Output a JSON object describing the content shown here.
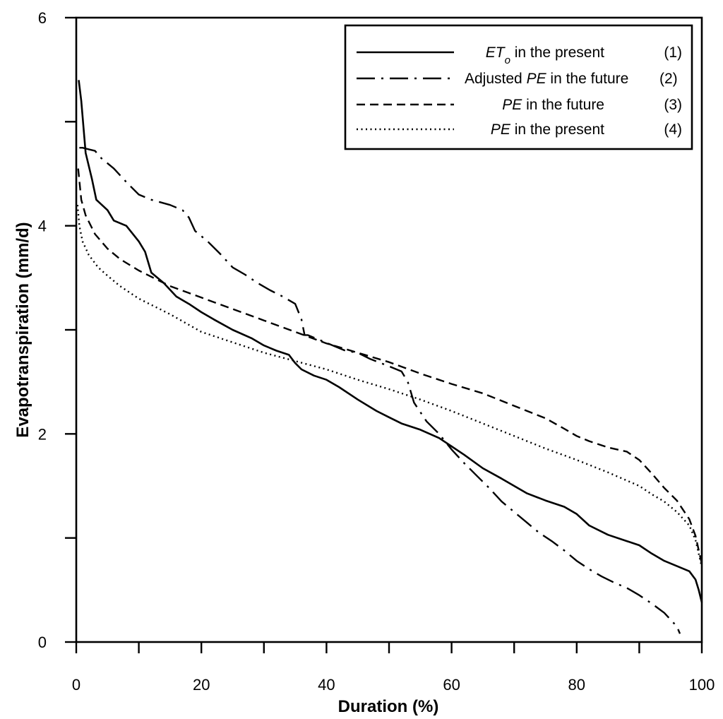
{
  "chart_data": {
    "type": "line",
    "title": "",
    "xlabel": "Duration (%)",
    "ylabel": "Evapotranspiration (mm/d)",
    "xlim": [
      0,
      100
    ],
    "ylim": [
      0,
      6
    ],
    "x_major_ticks": [
      0,
      20,
      40,
      60,
      80,
      100
    ],
    "x_minor_ticks": [
      10,
      30,
      50,
      70,
      90
    ],
    "y_major_ticks": [
      0,
      2,
      4,
      6
    ],
    "y_minor_ticks": [
      1,
      3,
      5
    ],
    "x_tick_labels": [
      "0",
      "20",
      "40",
      "60",
      "80",
      "100"
    ],
    "y_tick_labels": [
      "0",
      "2",
      "4",
      "6"
    ],
    "grid": false,
    "legend_position": "top-right",
    "series": [
      {
        "name": "ETo in the present",
        "legend_parts": [
          {
            "text": "ET",
            "italic": true
          },
          {
            "text": "o",
            "italic": true,
            "sub": true
          },
          {
            "text": " in the present",
            "italic": false
          }
        ],
        "number": "(1)",
        "style": "solid",
        "x": [
          0.4,
          0.8,
          1.5,
          2.5,
          3.2,
          5,
          6,
          8,
          10,
          11,
          12,
          14,
          16,
          18,
          20,
          22,
          25,
          28,
          30,
          32,
          34,
          35,
          36,
          38,
          40,
          42,
          45,
          48,
          50,
          52,
          55,
          58,
          60,
          62,
          65,
          68,
          70,
          72,
          75,
          78,
          80,
          82,
          85,
          88,
          90,
          92,
          94,
          96,
          98,
          99,
          99.5,
          100
        ],
        "y": [
          5.4,
          5.2,
          4.7,
          4.45,
          4.25,
          4.15,
          4.05,
          4.0,
          3.85,
          3.75,
          3.55,
          3.45,
          3.32,
          3.25,
          3.17,
          3.1,
          3.0,
          2.92,
          2.85,
          2.8,
          2.76,
          2.68,
          2.62,
          2.56,
          2.52,
          2.45,
          2.33,
          2.22,
          2.16,
          2.1,
          2.04,
          1.96,
          1.88,
          1.8,
          1.67,
          1.57,
          1.5,
          1.43,
          1.36,
          1.3,
          1.23,
          1.12,
          1.03,
          0.97,
          0.93,
          0.85,
          0.78,
          0.73,
          0.68,
          0.6,
          0.5,
          0.38
        ]
      },
      {
        "name": "Adjusted PE in the future",
        "legend_parts": [
          {
            "text": "Adjusted ",
            "italic": false
          },
          {
            "text": "PE",
            "italic": true
          },
          {
            "text": " in the future",
            "italic": false
          }
        ],
        "number": "(2)",
        "style": "dashdot",
        "x": [
          0.5,
          1,
          3,
          4,
          6,
          8,
          10,
          12,
          15,
          17,
          18,
          19,
          21,
          23,
          25,
          27,
          29,
          31,
          33,
          35,
          36,
          36.5,
          37,
          39,
          41,
          43,
          45,
          47,
          50,
          52,
          53,
          54,
          56,
          58,
          60,
          62,
          64,
          66,
          68,
          70,
          72,
          74,
          76,
          78,
          80,
          82,
          84,
          86,
          88,
          90,
          92,
          94,
          96,
          96.5
        ],
        "y": [
          4.75,
          4.75,
          4.72,
          4.65,
          4.55,
          4.42,
          4.3,
          4.25,
          4.2,
          4.15,
          4.08,
          3.95,
          3.85,
          3.73,
          3.6,
          3.53,
          3.45,
          3.38,
          3.32,
          3.25,
          3.1,
          2.95,
          2.95,
          2.9,
          2.85,
          2.8,
          2.78,
          2.72,
          2.65,
          2.6,
          2.5,
          2.3,
          2.12,
          2.0,
          1.85,
          1.72,
          1.6,
          1.48,
          1.35,
          1.25,
          1.15,
          1.05,
          0.97,
          0.88,
          0.78,
          0.7,
          0.63,
          0.57,
          0.52,
          0.45,
          0.37,
          0.28,
          0.15,
          0.08
        ]
      },
      {
        "name": "PE in the future",
        "legend_parts": [
          {
            "text": "PE",
            "italic": true
          },
          {
            "text": " in the future",
            "italic": false
          }
        ],
        "number": "(3)",
        "style": "dashed",
        "x": [
          0.3,
          0.8,
          1.5,
          3,
          5,
          7,
          10,
          15,
          20,
          25,
          30,
          35,
          40,
          45,
          50,
          55,
          60,
          65,
          70,
          75,
          78,
          80,
          82,
          85,
          88,
          90,
          92,
          94,
          96,
          98,
          99,
          100
        ],
        "y": [
          4.55,
          4.25,
          4.1,
          3.92,
          3.78,
          3.68,
          3.57,
          3.42,
          3.31,
          3.2,
          3.09,
          2.98,
          2.87,
          2.78,
          2.69,
          2.58,
          2.48,
          2.39,
          2.27,
          2.15,
          2.05,
          1.98,
          1.93,
          1.87,
          1.83,
          1.75,
          1.62,
          1.48,
          1.36,
          1.18,
          1.02,
          0.75
        ]
      },
      {
        "name": "PE in the present",
        "legend_parts": [
          {
            "text": "PE",
            "italic": true
          },
          {
            "text": " in the present",
            "italic": false
          }
        ],
        "number": "(4)",
        "style": "dotted",
        "x": [
          0.2,
          0.5,
          1,
          2,
          3.5,
          5,
          7,
          10,
          15,
          20,
          25,
          30,
          35,
          40,
          45,
          50,
          55,
          60,
          65,
          70,
          75,
          80,
          85,
          90,
          92,
          94,
          96,
          98,
          99,
          100
        ],
        "y": [
          4.2,
          4.0,
          3.85,
          3.72,
          3.6,
          3.52,
          3.42,
          3.3,
          3.15,
          2.98,
          2.88,
          2.78,
          2.7,
          2.62,
          2.52,
          2.43,
          2.33,
          2.22,
          2.1,
          1.98,
          1.86,
          1.75,
          1.63,
          1.5,
          1.42,
          1.35,
          1.25,
          1.12,
          0.98,
          0.72
        ]
      }
    ]
  }
}
